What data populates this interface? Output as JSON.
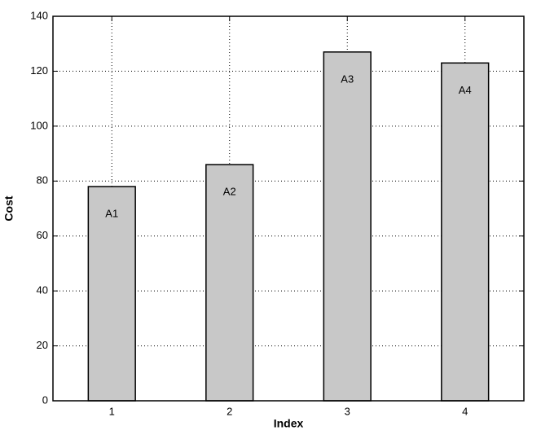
{
  "chart_data": {
    "type": "bar",
    "x_label": "Index",
    "y_label": "Cost",
    "x": [
      1,
      2,
      3,
      4
    ],
    "values": [
      78,
      86,
      127,
      123
    ],
    "bar_labels": [
      "A1",
      "A2",
      "A3",
      "A4"
    ],
    "color": "#c8c8c8",
    "xlim": [
      0.5,
      4.5
    ],
    "xticks": [
      1,
      2,
      3,
      4
    ],
    "ylim": [
      0,
      140
    ],
    "yticks": [
      0,
      20,
      40,
      60,
      80,
      100,
      120,
      140
    ],
    "grid": true
  }
}
